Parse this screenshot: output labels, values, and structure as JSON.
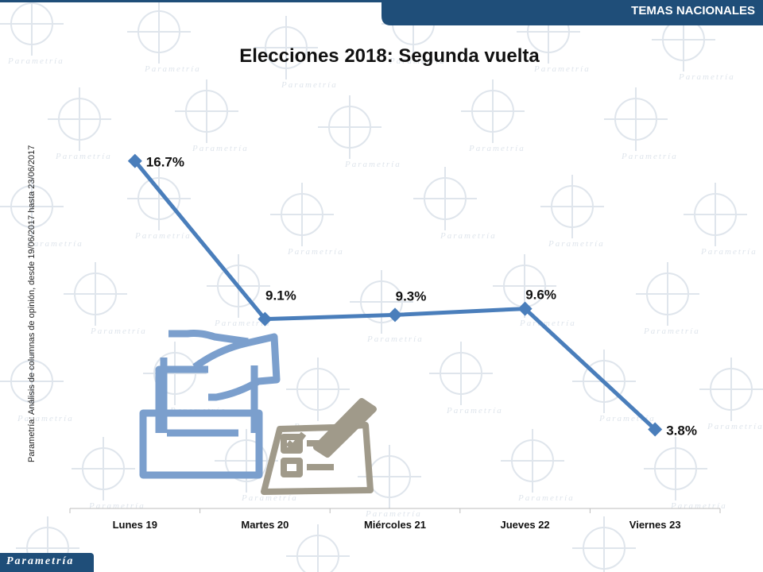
{
  "header": {
    "section": "TEMAS NACIONALES"
  },
  "source_note": "Parametría: Análisis de columnas de opinión, desde 19/06/2017 hasta 23/06/2017",
  "brand": "Parametría",
  "watermark_text": "Parametría",
  "colors": {
    "series": "#4a7ebb",
    "banner": "#1f4e79",
    "ballot_icon": "#7b9fcd",
    "checklist_icon": "#a09a8a"
  },
  "chart_data": {
    "type": "line",
    "title": "Elecciones 2018: Segunda vuelta",
    "categories": [
      "Lunes 19",
      "Martes 20",
      "Miércoles 21",
      "Jueves 22",
      "Viernes 23"
    ],
    "series": [
      {
        "values": [
          16.7,
          9.1,
          9.3,
          9.6,
          3.8
        ],
        "labels": [
          "16.7%",
          "9.1%",
          "9.3%",
          "9.6%",
          "3.8%"
        ]
      }
    ],
    "ylim": [
      0,
      21
    ],
    "xlabel": "",
    "ylabel": "",
    "grid": false,
    "marker": "diamond"
  }
}
